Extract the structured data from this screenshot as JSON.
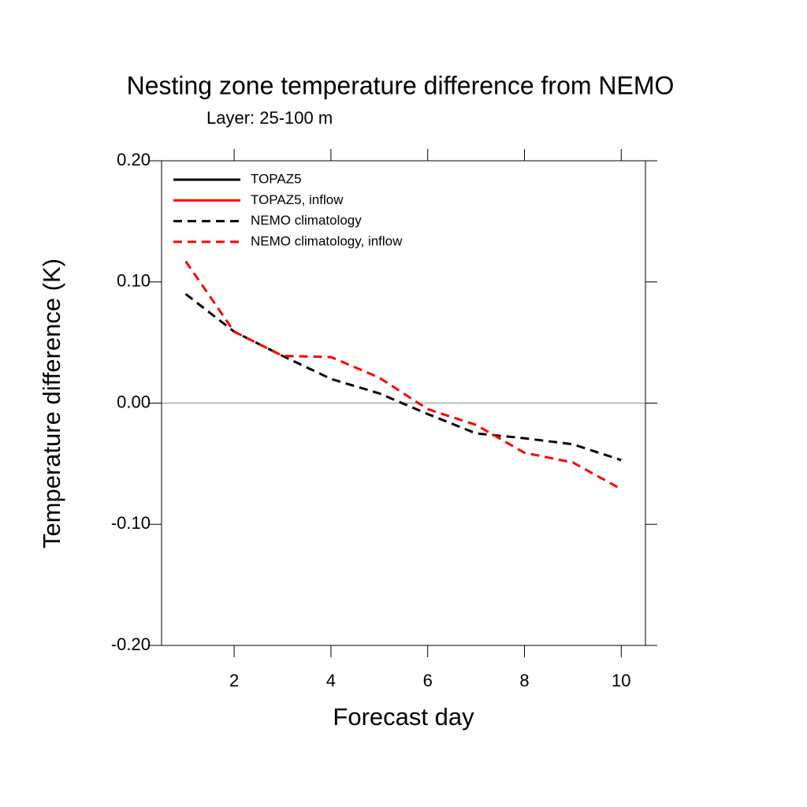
{
  "chart_data": {
    "type": "line",
    "title": "Nesting zone temperature difference from NEMO",
    "subtitle": "Layer: 25-100 m",
    "xlabel": "Forecast day",
    "ylabel": "Temperature difference (K)",
    "x": [
      1,
      2,
      3,
      4,
      5,
      6,
      7,
      8,
      9,
      10
    ],
    "series": [
      {
        "name": "TOPAZ5",
        "color": "#000000",
        "dashed": false,
        "values": [
          null,
          null,
          null,
          null,
          null,
          null,
          null,
          null,
          null,
          null
        ]
      },
      {
        "name": "TOPAZ5, inflow",
        "color": "#ff0000",
        "dashed": false,
        "values": [
          null,
          null,
          null,
          null,
          null,
          null,
          null,
          null,
          null,
          null
        ]
      },
      {
        "name": "NEMO climatology",
        "color": "#000000",
        "dashed": true,
        "values": [
          0.09,
          0.059,
          0.039,
          0.02,
          0.008,
          -0.009,
          -0.025,
          -0.029,
          -0.034,
          -0.047
        ]
      },
      {
        "name": "NEMO climatology, inflow",
        "color": "#ff0000",
        "dashed": true,
        "values": [
          0.117,
          0.059,
          0.039,
          0.038,
          0.021,
          -0.005,
          -0.018,
          -0.041,
          -0.049,
          -0.071
        ]
      }
    ],
    "xlim": [
      0.5,
      10.5
    ],
    "xticks": [
      2,
      4,
      6,
      8,
      10
    ],
    "ylim": [
      -0.2,
      0.2
    ],
    "yticks": [
      {
        "value": 0.2,
        "label": "0.20"
      },
      {
        "value": 0.1,
        "label": "0.10"
      },
      {
        "value": 0,
        "label": "0.00"
      },
      {
        "value": -0.1,
        "label": "-0.10"
      },
      {
        "value": -0.2,
        "label": "-0.20"
      }
    ],
    "reference_line": 0,
    "legend": "upper left"
  }
}
